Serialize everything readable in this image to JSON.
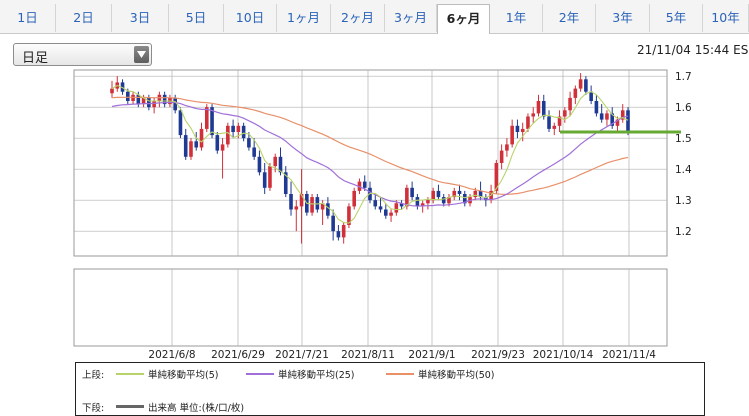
{
  "tabs": [
    {
      "label": "1日",
      "active": false
    },
    {
      "label": "2日",
      "active": false
    },
    {
      "label": "3日",
      "active": false
    },
    {
      "label": "5日",
      "active": false
    },
    {
      "label": "10日",
      "active": false
    },
    {
      "label": "1ヶ月",
      "active": false
    },
    {
      "label": "2ヶ月",
      "active": false
    },
    {
      "label": "3ヶ月",
      "active": false
    },
    {
      "label": "6ヶ月",
      "active": true
    },
    {
      "label": "1年",
      "active": false
    },
    {
      "label": "2年",
      "active": false
    },
    {
      "label": "3年",
      "active": false
    },
    {
      "label": "5年",
      "active": false
    },
    {
      "label": "10年",
      "active": false
    }
  ],
  "interval_select": {
    "value": "日足"
  },
  "timestamp": "21/11/04 15:44 ES",
  "legend": {
    "upper_label": "上段:",
    "lower_label": "下段:",
    "sma5": "単純移動平均(5)",
    "sma25": "単純移動平均(25)",
    "sma50": "単純移動平均(50)",
    "volume": "出来高 単位:(株/口/枚)"
  },
  "colors": {
    "up_candle": "#d0303a",
    "down_candle": "#1f3a93",
    "sma5": "#b9d36b",
    "sma25": "#a070d8",
    "sma50": "#e8906a",
    "last_price_line": "#66aa33",
    "grid": "#b0b0b0"
  },
  "chart_data": {
    "type": "candlestick",
    "y_ticks": [
      "1.7",
      "1.6",
      "1.5",
      "1.4",
      "1.3",
      "1.2"
    ],
    "y_range": [
      1.12,
      1.72
    ],
    "x_tick_labels": [
      "2021/6/8",
      "2021/6/29",
      "2021/7/21",
      "2021/8/11",
      "2021/9/1",
      "2021/9/23",
      "2021/10/14",
      "2021/11/4"
    ],
    "last_price": 1.52,
    "candles": [
      [
        1.645,
        1.685,
        1.63,
        1.66
      ],
      [
        1.66,
        1.7,
        1.65,
        1.68
      ],
      [
        1.68,
        1.69,
        1.64,
        1.65
      ],
      [
        1.65,
        1.66,
        1.61,
        1.62
      ],
      [
        1.62,
        1.65,
        1.61,
        1.64
      ],
      [
        1.64,
        1.65,
        1.6,
        1.61
      ],
      [
        1.61,
        1.64,
        1.6,
        1.63
      ],
      [
        1.63,
        1.64,
        1.59,
        1.6
      ],
      [
        1.6,
        1.63,
        1.58,
        1.62
      ],
      [
        1.62,
        1.65,
        1.6,
        1.64
      ],
      [
        1.64,
        1.65,
        1.6,
        1.61
      ],
      [
        1.61,
        1.64,
        1.6,
        1.63
      ],
      [
        1.63,
        1.64,
        1.58,
        1.59
      ],
      [
        1.59,
        1.6,
        1.5,
        1.51
      ],
      [
        1.51,
        1.53,
        1.43,
        1.44
      ],
      [
        1.44,
        1.5,
        1.43,
        1.49
      ],
      [
        1.49,
        1.52,
        1.46,
        1.47
      ],
      [
        1.47,
        1.55,
        1.46,
        1.53
      ],
      [
        1.53,
        1.61,
        1.52,
        1.6
      ],
      [
        1.6,
        1.61,
        1.5,
        1.51
      ],
      [
        1.51,
        1.52,
        1.45,
        1.46
      ],
      [
        1.46,
        1.5,
        1.37,
        1.48
      ],
      [
        1.48,
        1.55,
        1.47,
        1.54
      ],
      [
        1.54,
        1.56,
        1.5,
        1.52
      ],
      [
        1.52,
        1.55,
        1.5,
        1.54
      ],
      [
        1.54,
        1.55,
        1.49,
        1.5
      ],
      [
        1.5,
        1.52,
        1.46,
        1.47
      ],
      [
        1.47,
        1.5,
        1.43,
        1.44
      ],
      [
        1.44,
        1.46,
        1.38,
        1.39
      ],
      [
        1.39,
        1.42,
        1.32,
        1.34
      ],
      [
        1.34,
        1.42,
        1.33,
        1.41
      ],
      [
        1.41,
        1.45,
        1.39,
        1.44
      ],
      [
        1.44,
        1.47,
        1.38,
        1.39
      ],
      [
        1.39,
        1.41,
        1.31,
        1.32
      ],
      [
        1.32,
        1.36,
        1.25,
        1.27
      ],
      [
        1.27,
        1.3,
        1.2,
        1.28
      ],
      [
        1.28,
        1.4,
        1.16,
        1.32
      ],
      [
        1.32,
        1.33,
        1.25,
        1.26
      ],
      [
        1.26,
        1.32,
        1.25,
        1.31
      ],
      [
        1.31,
        1.32,
        1.26,
        1.27
      ],
      [
        1.27,
        1.3,
        1.22,
        1.29
      ],
      [
        1.29,
        1.31,
        1.24,
        1.25
      ],
      [
        1.25,
        1.27,
        1.17,
        1.2
      ],
      [
        1.2,
        1.22,
        1.17,
        1.18
      ],
      [
        1.18,
        1.23,
        1.16,
        1.22
      ],
      [
        1.22,
        1.29,
        1.21,
        1.28
      ],
      [
        1.28,
        1.34,
        1.27,
        1.33
      ],
      [
        1.33,
        1.37,
        1.32,
        1.36
      ],
      [
        1.36,
        1.38,
        1.33,
        1.34
      ],
      [
        1.34,
        1.36,
        1.29,
        1.3
      ],
      [
        1.3,
        1.32,
        1.27,
        1.28
      ],
      [
        1.28,
        1.31,
        1.26,
        1.27
      ],
      [
        1.27,
        1.29,
        1.24,
        1.25
      ],
      [
        1.25,
        1.27,
        1.23,
        1.26
      ],
      [
        1.26,
        1.3,
        1.25,
        1.29
      ],
      [
        1.29,
        1.3,
        1.27,
        1.28
      ],
      [
        1.28,
        1.35,
        1.27,
        1.34
      ],
      [
        1.34,
        1.36,
        1.3,
        1.31
      ],
      [
        1.31,
        1.32,
        1.27,
        1.28
      ],
      [
        1.28,
        1.3,
        1.26,
        1.29
      ],
      [
        1.29,
        1.31,
        1.27,
        1.3
      ],
      [
        1.3,
        1.34,
        1.29,
        1.33
      ],
      [
        1.33,
        1.35,
        1.3,
        1.31
      ],
      [
        1.31,
        1.32,
        1.28,
        1.29
      ],
      [
        1.29,
        1.32,
        1.28,
        1.31
      ],
      [
        1.31,
        1.34,
        1.3,
        1.33
      ],
      [
        1.33,
        1.35,
        1.3,
        1.32
      ],
      [
        1.32,
        1.33,
        1.28,
        1.29
      ],
      [
        1.29,
        1.32,
        1.28,
        1.31
      ],
      [
        1.31,
        1.34,
        1.3,
        1.33
      ],
      [
        1.33,
        1.36,
        1.3,
        1.31
      ],
      [
        1.31,
        1.32,
        1.28,
        1.3
      ],
      [
        1.3,
        1.35,
        1.29,
        1.33
      ],
      [
        1.33,
        1.43,
        1.32,
        1.42
      ],
      [
        1.42,
        1.48,
        1.4,
        1.46
      ],
      [
        1.46,
        1.5,
        1.44,
        1.48
      ],
      [
        1.48,
        1.56,
        1.47,
        1.54
      ],
      [
        1.54,
        1.56,
        1.5,
        1.52
      ],
      [
        1.52,
        1.55,
        1.49,
        1.53
      ],
      [
        1.53,
        1.58,
        1.52,
        1.57
      ],
      [
        1.57,
        1.6,
        1.55,
        1.58
      ],
      [
        1.58,
        1.64,
        1.57,
        1.62
      ],
      [
        1.62,
        1.64,
        1.56,
        1.57
      ],
      [
        1.57,
        1.59,
        1.52,
        1.53
      ],
      [
        1.53,
        1.55,
        1.51,
        1.54
      ],
      [
        1.54,
        1.59,
        1.52,
        1.57
      ],
      [
        1.57,
        1.6,
        1.55,
        1.59
      ],
      [
        1.59,
        1.65,
        1.57,
        1.63
      ],
      [
        1.63,
        1.67,
        1.61,
        1.66
      ],
      [
        1.66,
        1.71,
        1.65,
        1.69
      ],
      [
        1.69,
        1.7,
        1.64,
        1.65
      ],
      [
        1.65,
        1.67,
        1.61,
        1.62
      ],
      [
        1.62,
        1.64,
        1.57,
        1.58
      ],
      [
        1.58,
        1.61,
        1.55,
        1.56
      ],
      [
        1.56,
        1.59,
        1.54,
        1.58
      ],
      [
        1.58,
        1.6,
        1.53,
        1.54
      ],
      [
        1.54,
        1.57,
        1.52,
        1.56
      ],
      [
        1.56,
        1.61,
        1.55,
        1.59
      ],
      [
        1.59,
        1.6,
        1.51,
        1.52
      ]
    ]
  }
}
